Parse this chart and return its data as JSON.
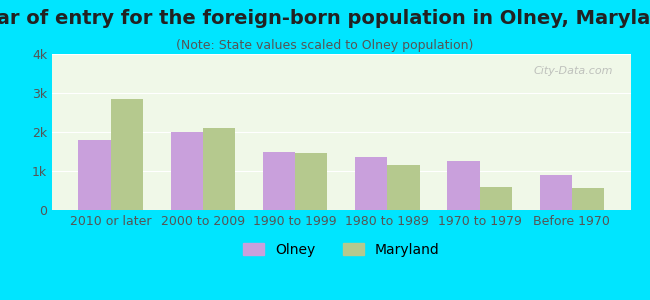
{
  "title": "Year of entry for the foreign-born population in Olney, Maryland",
  "subtitle": "(Note: State values scaled to Olney population)",
  "categories": [
    "2010 or later",
    "2000 to 2009",
    "1990 to 1999",
    "1980 to 1989",
    "1970 to 1979",
    "Before 1970"
  ],
  "olney_values": [
    1800,
    2000,
    1500,
    1350,
    1250,
    900
  ],
  "maryland_values": [
    2850,
    2100,
    1470,
    1150,
    600,
    560
  ],
  "olney_color": "#c9a0dc",
  "maryland_color": "#b5c98e",
  "background_outer": "#00e5ff",
  "background_chart": "#f0f8e8",
  "ylim": [
    0,
    4000
  ],
  "yticks": [
    0,
    1000,
    2000,
    3000,
    4000
  ],
  "ytick_labels": [
    "0",
    "1k",
    "2k",
    "3k",
    "4k"
  ],
  "bar_width": 0.35,
  "title_fontsize": 14,
  "subtitle_fontsize": 9,
  "axis_label_fontsize": 9,
  "legend_fontsize": 10,
  "watermark_text": "City-Data.com"
}
